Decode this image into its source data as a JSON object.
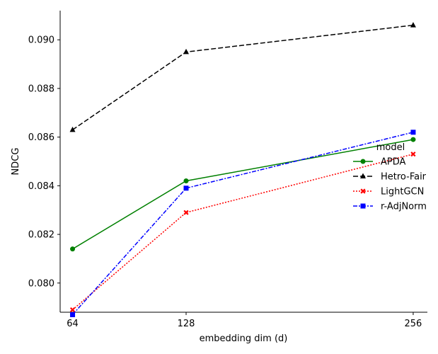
{
  "chart_data": {
    "type": "line",
    "xlabel": "embedding dim (d)",
    "ylabel": "NDCG",
    "x": [
      "64",
      "128",
      "256"
    ],
    "x_positions": [
      64,
      128,
      256
    ],
    "xlim": [
      57,
      264
    ],
    "ylim": [
      0.0788,
      0.0912
    ],
    "yticks": [
      0.08,
      0.082,
      0.084,
      0.086,
      0.088,
      0.09
    ],
    "ytick_labels": [
      "0.080",
      "0.082",
      "0.084",
      "0.086",
      "0.088",
      "0.090"
    ],
    "grid": false,
    "legend": {
      "title": "model",
      "placement": "right"
    },
    "series": [
      {
        "name": "APDA",
        "color": "#008000",
        "dash": "",
        "marker": "circle",
        "values": [
          0.0814,
          0.0842,
          0.0859
        ]
      },
      {
        "name": "Hetro-Fair",
        "color": "#000000",
        "dash": "7,3",
        "marker": "triangle",
        "values": [
          0.0863,
          0.0895,
          0.0906
        ]
      },
      {
        "name": "LightGCN",
        "color": "#ff0000",
        "dash": "2,2",
        "marker": "x",
        "values": [
          0.0789,
          0.0829,
          0.0853
        ]
      },
      {
        "name": "r-AdjNorm",
        "color": "#0000ff",
        "dash": "6,2,2,2",
        "marker": "square",
        "values": [
          0.0787,
          0.0839,
          0.0862
        ]
      }
    ]
  }
}
